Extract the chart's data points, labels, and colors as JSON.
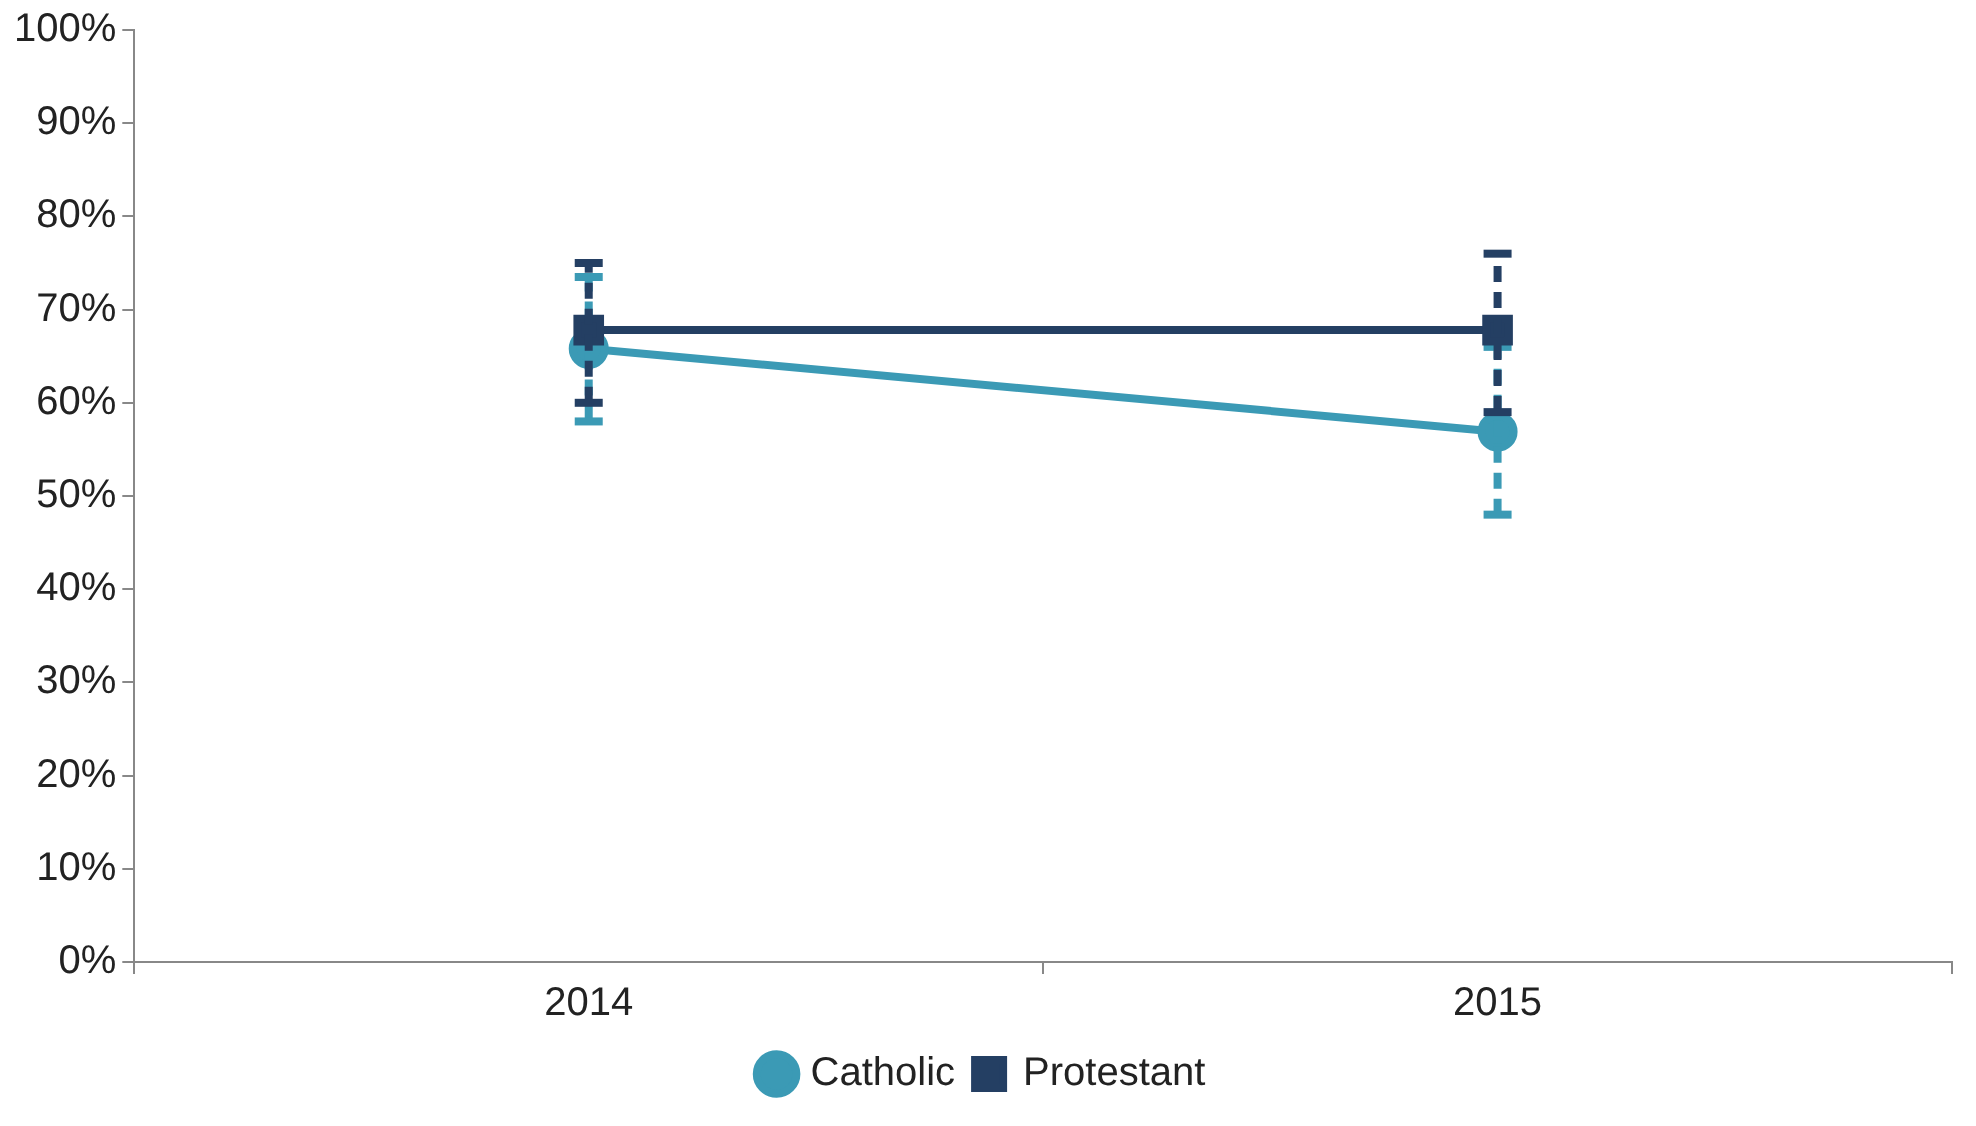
{
  "chart_data": {
    "type": "line",
    "categories": [
      "2014",
      "2015"
    ],
    "series": [
      {
        "name": "Catholic",
        "color": "#3b9ab5",
        "marker": "circle",
        "values": [
          65.8,
          56.9
        ],
        "errors": [
          [
            58,
            73.5
          ],
          [
            48,
            66
          ]
        ]
      },
      {
        "name": "Protestant",
        "color": "#243f63",
        "marker": "square",
        "values": [
          67.8,
          67.8
        ],
        "errors": [
          [
            60,
            75
          ],
          [
            59,
            76
          ]
        ]
      }
    ],
    "ylim": [
      0,
      100
    ],
    "yticks": [
      {
        "value": 0,
        "label": "0%"
      },
      {
        "value": 10,
        "label": "10%"
      },
      {
        "value": 20,
        "label": "20%"
      },
      {
        "value": 30,
        "label": "30%"
      },
      {
        "value": 40,
        "label": "40%"
      },
      {
        "value": 50,
        "label": "50%"
      },
      {
        "value": 60,
        "label": "60%"
      },
      {
        "value": 70,
        "label": "70%"
      },
      {
        "value": 80,
        "label": "80%"
      },
      {
        "value": 90,
        "label": "90%"
      },
      {
        "value": 100,
        "label": "100%"
      }
    ],
    "grid": false,
    "legend": "bottom"
  }
}
